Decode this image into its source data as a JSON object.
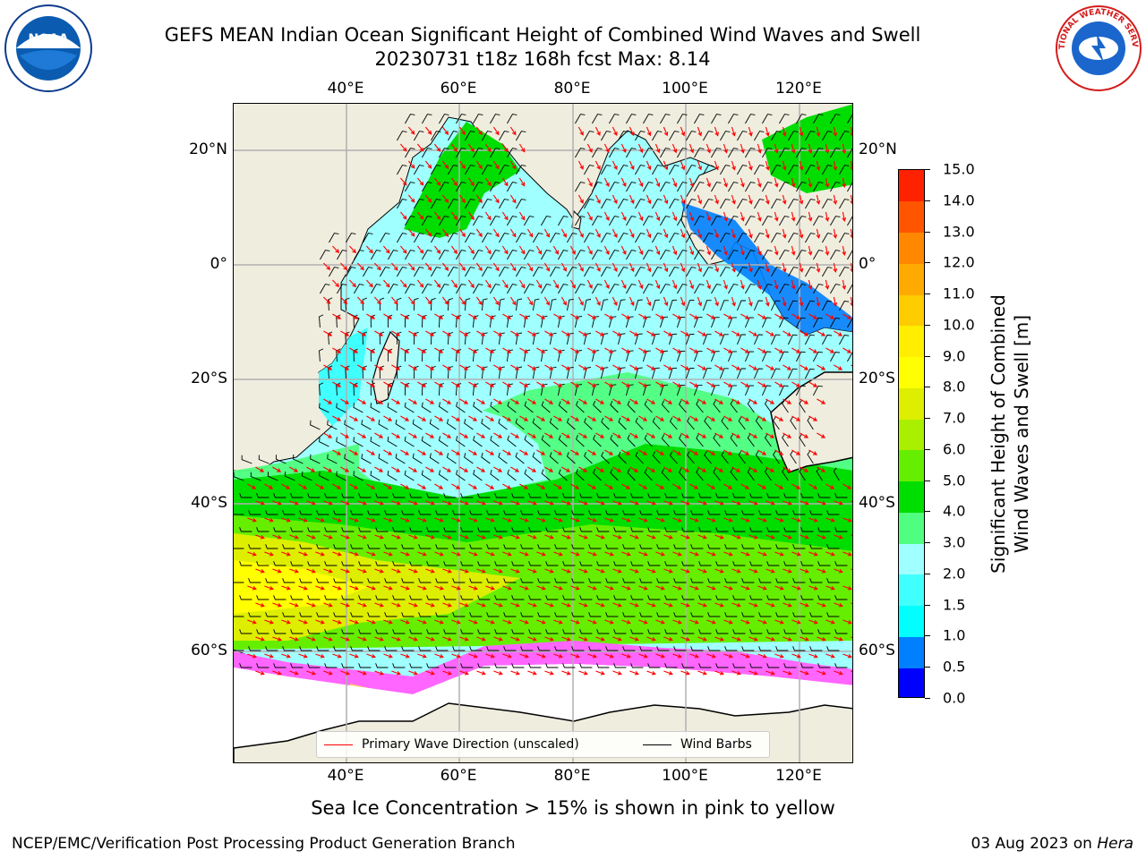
{
  "header": {
    "title_line1": "GEFS MEAN Indian Ocean Significant Height of Combined Wind Waves and Swell",
    "title_line2": "20230731 t18z 168h fcst   Max: 8.14"
  },
  "logos": {
    "left": {
      "name": "noaa-logo",
      "text": "NOAA"
    },
    "right": {
      "name": "nws-logo",
      "text": "NATIONAL WEATHER SERVICE"
    }
  },
  "map": {
    "lon_ticks": [
      "40°E",
      "60°E",
      "80°E",
      "100°E",
      "120°E"
    ],
    "lat_ticks": [
      "20°N",
      "0°",
      "20°S",
      "40°S",
      "60°S"
    ],
    "colors": {
      "land": "#efedde",
      "ice_free": "#ffffff",
      "ice_pink": "#ff66ff",
      "vector": "#ff0000",
      "barb": "#000000",
      "grid": "#b0b0b0"
    }
  },
  "colorbar": {
    "label": "Significant Height of Combined Wind Waves and Swell [m]",
    "label_line1": "Significant Height of Combined",
    "label_line2": "Wind Waves and Swell [m]",
    "ticks": [
      "0.0",
      "0.5",
      "1.0",
      "1.5",
      "2.0",
      "3.0",
      "4.0",
      "5.0",
      "6.0",
      "7.0",
      "8.0",
      "9.0",
      "10.0",
      "11.0",
      "12.0",
      "13.0",
      "14.0",
      "15.0"
    ],
    "colors": [
      "#0000ff",
      "#0080ff",
      "#00ffff",
      "#40ffff",
      "#a0ffff",
      "#50ff80",
      "#00dd00",
      "#66ee00",
      "#aaee00",
      "#ddee00",
      "#ffff00",
      "#ffee00",
      "#ffcc00",
      "#ffaa00",
      "#ff8800",
      "#ff5500",
      "#ff2200"
    ]
  },
  "legend": {
    "wave_direction": "Primary Wave Direction (unscaled)",
    "wind_barbs": "Wind Barbs",
    "wave_color": "#ff0000",
    "barb_color": "#000000"
  },
  "caption": "Sea Ice Concentration > 15% is shown in pink to yellow",
  "footer": {
    "left": "NCEP/EMC/Verification Post Processing Product Generation Branch",
    "right_prefix": "03 Aug 2023 on ",
    "right_host": "Hera"
  }
}
